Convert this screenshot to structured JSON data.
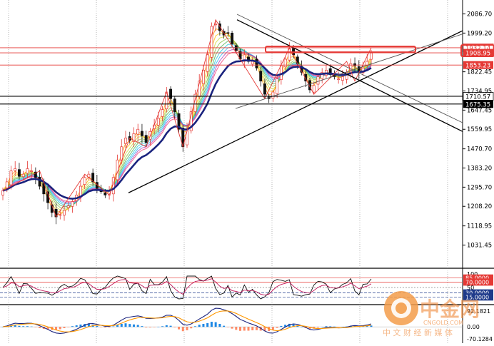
{
  "chart_data": [
    {
      "panel": "price",
      "type": "candlestick",
      "y_axis_ticks": [
        "2086.70",
        "1999.20",
        "1822.45",
        "1734.95",
        "1647.45",
        "1559.95",
        "1470.70",
        "1383.20",
        "1295.70",
        "1208.20",
        "1118.95",
        "1031.45"
      ],
      "price_labels": [
        {
          "text": "1932.14",
          "value": 1932.14,
          "color": "#e53935",
          "style": "boxed"
        },
        {
          "text": "1908.95",
          "value": 1908.95,
          "color": "#e53935",
          "style": "filled"
        },
        {
          "text": "1853.23",
          "value": 1853.23,
          "color": "#e53935",
          "style": "filled"
        },
        {
          "text": "1710.57",
          "value": 1710.57,
          "color": "#000000",
          "style": "boxed"
        },
        {
          "text": "1675.35",
          "value": 1675.35,
          "color": "#000000",
          "style": "filled"
        }
      ],
      "closes": [
        1280,
        1320,
        1370,
        1380,
        1345,
        1355,
        1380,
        1370,
        1340,
        1300,
        1265,
        1225,
        1180,
        1160,
        1170,
        1190,
        1210,
        1230,
        1260,
        1300,
        1340,
        1355,
        1320,
        1290,
        1275,
        1260,
        1280,
        1340,
        1420,
        1480,
        1520,
        1510,
        1540,
        1560,
        1530,
        1500,
        1550,
        1580,
        1610,
        1650,
        1730,
        1700,
        1640,
        1560,
        1480,
        1560,
        1640,
        1720,
        1780,
        1830,
        1900,
        2030,
        2040,
        2010,
        1990,
        2000,
        1950,
        1920,
        1880,
        1900,
        1870,
        1870,
        1840,
        1780,
        1720,
        1700,
        1730,
        1790,
        1850,
        1880,
        1930,
        1900,
        1860,
        1820,
        1780,
        1740,
        1760,
        1800,
        1820,
        1830,
        1810,
        1800,
        1790,
        1800,
        1820,
        1860,
        1850,
        1820,
        1840,
        1870,
        1908
      ]
    },
    {
      "panel": "rsi",
      "type": "line",
      "levels": [
        "85.0000",
        "70.0000",
        "50",
        "30.0000",
        "15.0000"
      ],
      "top_label": "100"
    },
    {
      "panel": "macd",
      "type": "bar",
      "y_axis_ticks": [
        "92.1821",
        "0.00",
        "-70.1284"
      ]
    }
  ],
  "watermark": {
    "text_cn": "中金网",
    "url": "CNGOLD.COM",
    "slogan": "中 文 财 经 新 媒 体"
  },
  "colors": {
    "ma_main": "#1a237e",
    "up_candle": "#e53935",
    "down_candle": "#111111",
    "resistance": "#e53935",
    "support": "#000000",
    "watermark": "#f08a3c"
  }
}
